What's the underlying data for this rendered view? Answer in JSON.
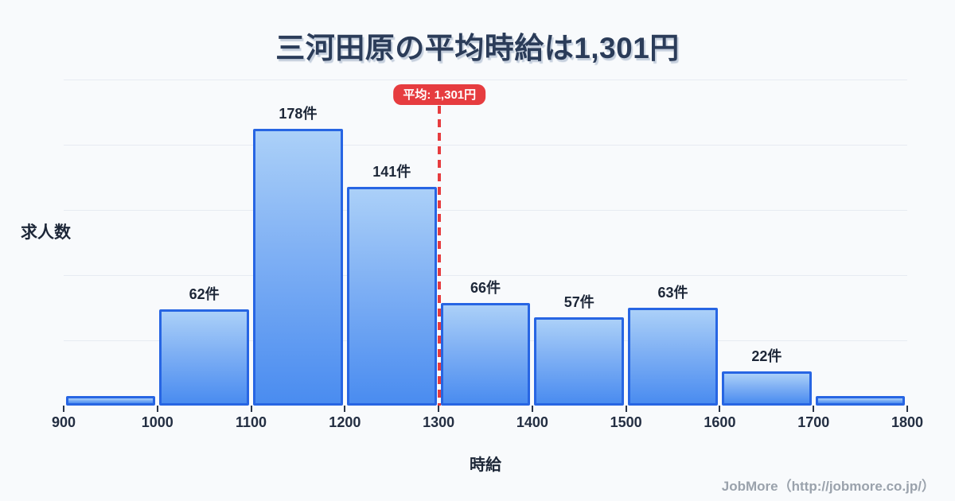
{
  "page": {
    "title": "三河田原の平均時給は1,301円",
    "footer": "JobMore（http://jobmore.co.jp/）",
    "background": "#f8fafc"
  },
  "chart_data": {
    "type": "bar",
    "title": "三河田原の平均時給は1,301円",
    "xlabel": "時給",
    "ylabel": "求人数",
    "bin_edges": [
      900,
      1000,
      1100,
      1200,
      1300,
      1400,
      1500,
      1600,
      1700,
      1800
    ],
    "x_tick_labels": [
      "900",
      "1000",
      "1100",
      "1200",
      "1300",
      "1400",
      "1500",
      "1600",
      "1700",
      "1800"
    ],
    "values": [
      6,
      62,
      178,
      141,
      66,
      57,
      63,
      22,
      6
    ],
    "bar_labels": [
      "",
      "62件",
      "178件",
      "141件",
      "66件",
      "57件",
      "63件",
      "22件",
      ""
    ],
    "ylim": [
      0,
      210
    ],
    "grid": "horizontal",
    "legend": "none",
    "mean_line": {
      "x": 1301,
      "label": "平均: 1,301円",
      "color": "#e63c3f"
    },
    "colors": {
      "bar_fill_top": "#abd0f8",
      "bar_fill_bottom": "#4a8cf0",
      "bar_border": "#2765e3",
      "gridline": "#e7ebf2",
      "text": "#1d2738"
    }
  }
}
